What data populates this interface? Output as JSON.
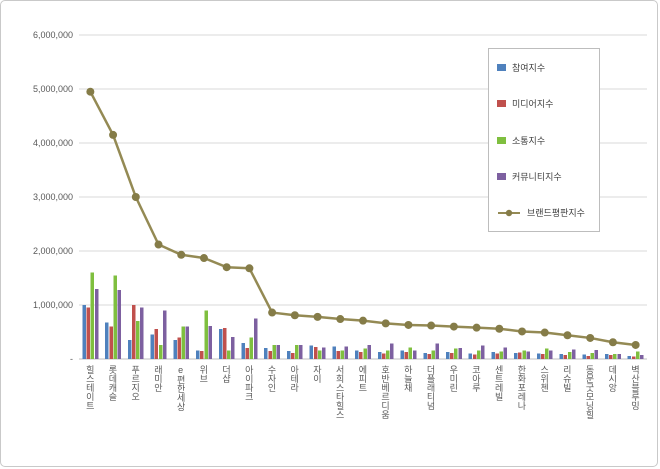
{
  "chart": {
    "background": "#ffffff",
    "frame_border_color": "#c9c9c9",
    "gridline_color": "#d9d9d9",
    "axis_line_color": "#bfbfbf",
    "axis_text_color": "#595959",
    "legend_border_color": "#bdbdbd"
  },
  "chart_data": {
    "type": "bar",
    "grid": true,
    "legend_position": "upper-right-inside",
    "ylim": [
      0,
      6000000
    ],
    "ytick_interval": 1000000,
    "ytick_labels": [
      "-",
      "1,000,000",
      "2,000,000",
      "3,000,000",
      "4,000,000",
      "5,000,000",
      "6,000,000"
    ],
    "categories": [
      "힐스테이트",
      "롯데캐슬",
      "푸르지오",
      "래미안",
      "e편한세상",
      "위브",
      "더샵",
      "아이파크",
      "수자인",
      "아테라",
      "자이",
      "서희스타힐스",
      "에피트",
      "호반베르디움",
      "하늘채",
      "더플래티넘",
      "우미린",
      "코아루",
      "센트레빌",
      "한화포레나",
      "스위첸",
      "리슈빌",
      "동문굿모닝힐",
      "데시앙",
      "벽산블루밍"
    ],
    "series": [
      {
        "name": "참여지수",
        "type": "bar",
        "color": "#4F81BD",
        "values": [
          1000000,
          680000,
          350000,
          450000,
          350000,
          160000,
          560000,
          300000,
          200000,
          150000,
          250000,
          230000,
          160000,
          130000,
          160000,
          110000,
          130000,
          100000,
          130000,
          110000,
          100000,
          90000,
          80000,
          90000,
          60000
        ]
      },
      {
        "name": "미디어지수",
        "type": "bar",
        "color": "#C0504D",
        "values": [
          950000,
          600000,
          1000000,
          560000,
          400000,
          150000,
          570000,
          200000,
          150000,
          110000,
          220000,
          150000,
          130000,
          100000,
          130000,
          90000,
          110000,
          80000,
          100000,
          120000,
          90000,
          70000,
          60000,
          70000,
          50000
        ]
      },
      {
        "name": "소통지수",
        "type": "bar",
        "color": "#7FBF3F",
        "values": [
          1600000,
          1550000,
          700000,
          260000,
          600000,
          900000,
          160000,
          400000,
          260000,
          260000,
          160000,
          160000,
          190000,
          160000,
          210000,
          160000,
          190000,
          160000,
          140000,
          160000,
          190000,
          130000,
          110000,
          90000,
          140000
        ]
      },
      {
        "name": "커뮤니티지수",
        "type": "bar",
        "color": "#7D60A0",
        "values": [
          1300000,
          1280000,
          950000,
          900000,
          600000,
          610000,
          410000,
          750000,
          260000,
          260000,
          210000,
          230000,
          260000,
          290000,
          160000,
          290000,
          200000,
          250000,
          210000,
          140000,
          160000,
          180000,
          170000,
          90000,
          70000
        ]
      },
      {
        "name": "브랜드평판지수",
        "type": "line",
        "color": "#948A54",
        "marker_color": "#857C48",
        "values": [
          4950000,
          4150000,
          3000000,
          2120000,
          1930000,
          1870000,
          1700000,
          1680000,
          860000,
          810000,
          780000,
          740000,
          710000,
          660000,
          630000,
          620000,
          600000,
          580000,
          560000,
          510000,
          490000,
          440000,
          390000,
          310000,
          260000
        ]
      }
    ]
  }
}
